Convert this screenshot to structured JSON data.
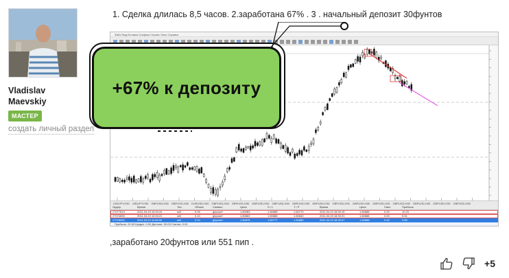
{
  "author": {
    "name_line1": "Vladislav",
    "name_line2": "Maevskiy",
    "badge": "МАСТЕР",
    "create_section_link": "создать личный раздел"
  },
  "post": {
    "line1": "1. Сделка длилась 8,5 часов. 2.заработана 67% . 3 . начальный депозит 30фунтов",
    "line2": ",заработано 20фунтов или 551 пип ."
  },
  "callout": {
    "text": "+67% к депозиту",
    "color": "#8bd05c"
  },
  "terminal": {
    "menu": "Файл  Вид  Вставка  Графики  Сервис  Окно  Справка",
    "chart_tabs": [
      "USDJPY,H30",
      "USDJPY,H30",
      "GBPUSD,H30",
      "GBPUSD,H30",
      "EURUSD,H30",
      "GBPUSD,H30",
      "GBPUSD,H30",
      "GBPUSD,H30",
      "GBPUSD,H30",
      "GBPUSD,H30",
      "GBPUSD,H30",
      "GBPUSD,H30",
      "GBPUSD,H30",
      "GBPUSD,H30",
      "GBPUSD,H30",
      "GBPUSD,H30",
      "GBPUSD,H30",
      "GBPUSD,H30"
    ],
    "table_headers": [
      "Ордер",
      "Время",
      "Тип",
      "Объем",
      "Символ",
      "Цена",
      "S / L",
      "T / P",
      "Время",
      "Цена",
      "Своп",
      "Прибыль"
    ],
    "rows": [
      [
        "27077813",
        "2011.04.19 10:00:24",
        "sell",
        "0.05",
        "gbpusd+",
        "1.60983",
        "1.60888",
        "1.60770",
        "2011.04.19 18:30:19",
        "1.60888",
        "0.00",
        "10.20"
      ],
      [
        "27074890",
        "2011.04.19 10:00:21",
        "sell",
        "0.10",
        "gbpusd+",
        "1.60863",
        "1.60888",
        "1.60840",
        "2011.04.19 18:30:21",
        "1.60888",
        "0.00",
        "5.91"
      ],
      [
        "27078052",
        "2011.04.19 11:00:00",
        "sell",
        "0.10",
        "gbpusd+",
        "1.60875",
        "1.60777",
        "1.60880",
        "2011.04.19 18:30:27",
        "1.60888",
        "0.00",
        "3.89"
      ]
    ],
    "total_row": "Прибыль: 20.00  Кредит: 0.00  Депозит: 30.00  Снятие: 0.00"
  },
  "reactions": {
    "score": "+5"
  }
}
